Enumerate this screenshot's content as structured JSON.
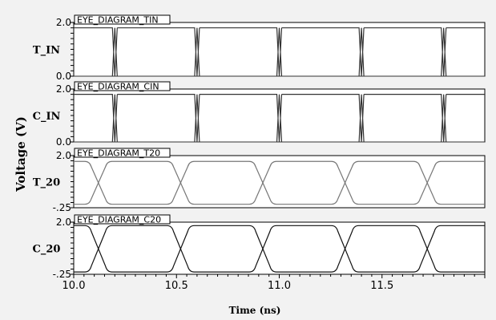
{
  "chart_data": {
    "type": "line",
    "ylabel": "Voltage (V)",
    "xlabel": "Time (ns)",
    "x_range": [
      10.0,
      12.0
    ],
    "x_ticks": [
      10.0,
      10.5,
      11.0,
      11.5
    ],
    "x_tick_labels": [
      "10.0",
      "10.5",
      "11.0",
      "11.5"
    ],
    "grid": false,
    "panels": [
      {
        "name": "T_IN",
        "title": "EYE_DIAGRAM_TIN",
        "ylim": [
          0.0,
          2.0
        ],
        "ytick_labels": [
          "2.0",
          "0.0"
        ],
        "style": "square",
        "transitions_ns": [
          10.2,
          10.6,
          11.0,
          11.4,
          11.8
        ],
        "high": 1.8,
        "low": 0.0,
        "color": "#333333"
      },
      {
        "name": "C_IN",
        "title": "EYE_DIAGRAM_CIN",
        "ylim": [
          0.0,
          2.0
        ],
        "ytick_labels": [
          "2.0",
          "0.0"
        ],
        "style": "square",
        "transitions_ns": [
          10.2,
          10.6,
          11.0,
          11.4,
          11.8
        ],
        "high": 1.8,
        "low": 0.0,
        "color": "#333333"
      },
      {
        "name": "T_20",
        "title": "EYE_DIAGRAM_T20",
        "ylim": [
          -0.25,
          2.0
        ],
        "ytick_labels": [
          "2.0",
          "-.25"
        ],
        "style": "eye",
        "crossings_ns": [
          10.12,
          10.52,
          10.92,
          11.32,
          11.72
        ],
        "high": 1.75,
        "low": -0.1,
        "color": "#777777"
      },
      {
        "name": "C_20",
        "title": "EYE_DIAGRAM_C20",
        "ylim": [
          -0.25,
          2.0
        ],
        "ytick_labels": [
          "2.0",
          "-.25"
        ],
        "style": "eye",
        "crossings_ns": [
          10.12,
          10.52,
          10.92,
          11.32,
          11.72
        ],
        "high": 1.85,
        "low": -0.15,
        "color": "#111111"
      }
    ]
  }
}
